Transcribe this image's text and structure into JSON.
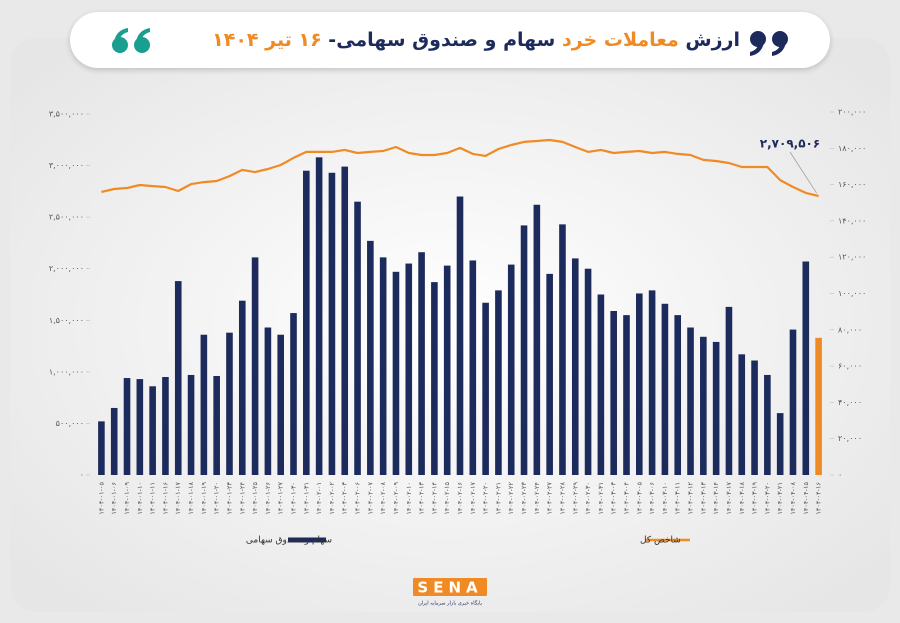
{
  "chart_data": {
    "type": "bar-line",
    "title_parts": [
      {
        "text": "ارزش",
        "color": "#1d2a5c"
      },
      {
        "text": " معاملات خرد",
        "color": "#f08a24"
      },
      {
        "text": " سهام و صندوق سهامی- ",
        "color": "#1d2a5c"
      },
      {
        "text": "۱۶ تیر ۱۴۰۴",
        "color": "#f08a24"
      }
    ],
    "categories": [
      "۱۴۰۴-۰۱-۰۵",
      "۱۴۰۴-۰۱-۰۶",
      "۱۴۰۴-۰۱-۰۹",
      "۱۴۰۴-۰۱-۱۰",
      "۱۴۰۴-۰۱-۱۱",
      "۱۴۰۴-۰۱-۱۶",
      "۱۴۰۴-۰۱-۱۷",
      "۱۴۰۴-۰۱-۱۸",
      "۱۴۰۴-۰۱-۱۹",
      "۱۴۰۴-۰۱-۲۰",
      "۱۴۰۴-۰۱-۲۳",
      "۱۴۰۴-۰۱-۲۴",
      "۱۴۰۴-۰۱-۲۵",
      "۱۴۰۴-۰۱-۲۶",
      "۱۴۰۴-۰۱-۲۷",
      "۱۴۰۴-۰۱-۳۰",
      "۱۴۰۴-۰۱-۳۱",
      "۱۴۰۴-۰۲-۰۱",
      "۱۴۰۴-۰۲-۰۲",
      "۱۴۰۴-۰۲-۰۳",
      "۱۴۰۴-۰۲-۰۶",
      "۱۴۰۴-۰۲-۰۷",
      "۱۴۰۴-۰۲-۰۸",
      "۱۴۰۴-۰۲-۰۹",
      "۱۴۰۴-۰۲-۱۰",
      "۱۴۰۴-۰۲-۱۳",
      "۱۴۰۴-۰۲-۱۴",
      "۱۴۰۴-۰۲-۱۵",
      "۱۴۰۴-۰۲-۱۶",
      "۱۴۰۴-۰۲-۱۷",
      "۱۴۰۴-۰۲-۲۰",
      "۱۴۰۴-۰۲-۲۱",
      "۱۴۰۴-۰۲-۲۲",
      "۱۴۰۴-۰۲-۲۳",
      "۱۴۰۴-۰۲-۲۴",
      "۱۴۰۴-۰۲-۲۷",
      "۱۴۰۴-۰۲-۲۸",
      "۱۴۰۴-۰۲-۲۹",
      "۱۴۰۴-۰۲-۳۰",
      "۱۴۰۴-۰۲-۳۱",
      "۱۴۰۴-۰۳-۰۳",
      "۱۴۰۴-۰۳-۰۴",
      "۱۴۰۴-۰۳-۰۵",
      "۱۴۰۴-۰۳-۰۶",
      "۱۴۰۴-۰۳-۱۰",
      "۱۴۰۴-۰۳-۱۱",
      "۱۴۰۴-۰۳-۱۲",
      "۱۴۰۴-۰۳-۱۳",
      "۱۴۰۴-۰۳-۱۴",
      "۱۴۰۴-۰۳-۱۷",
      "۱۴۰۴-۰۳-۱۸",
      "۱۴۰۴-۰۳-۱۹",
      "۱۴۰۴-۰۳-۲۰",
      "۱۴۰۴-۰۳-۲۱",
      "۱۴۰۴-۰۴-۰۸",
      "۱۴۰۴-۰۴-۱۵",
      "۱۴۰۴-۰۴-۱۶"
    ],
    "series": [
      {
        "name": "سهام و صندوق سهامی",
        "type": "bar",
        "color": "#1d2a5c",
        "last_color": "#f08a24",
        "values": [
          520000,
          650000,
          940000,
          930000,
          860000,
          950000,
          1880000,
          970000,
          1360000,
          960000,
          1380000,
          1690000,
          2110000,
          1430000,
          1360000,
          1570000,
          2950000,
          3080000,
          2930000,
          2990000,
          2650000,
          2270000,
          2110000,
          1970000,
          2050000,
          2160000,
          1870000,
          2030000,
          2700000,
          2080000,
          1670000,
          1790000,
          2040000,
          2420000,
          2620000,
          1950000,
          2430000,
          2100000,
          2000000,
          1750000,
          1590000,
          1550000,
          1760000,
          1790000,
          1660000,
          1550000,
          1430000,
          1340000,
          1290000,
          1630000,
          1170000,
          1110000,
          970000,
          600000,
          1410000,
          2070000,
          1330000
        ]
      },
      {
        "name": "شاخص کل",
        "type": "line",
        "axis": "y2",
        "color": "#f08a24",
        "values": [
          156000,
          157600,
          158100,
          159800,
          159200,
          158700,
          156500,
          160300,
          161400,
          162000,
          164700,
          168100,
          166900,
          168600,
          170800,
          174700,
          178000,
          178000,
          178000,
          179100,
          177400,
          178000,
          178500,
          180700,
          177400,
          176300,
          176300,
          177400,
          180200,
          176900,
          175800,
          179600,
          181800,
          183500,
          184000,
          184600,
          183500,
          180700,
          178000,
          179100,
          177400,
          178000,
          178500,
          177400,
          178000,
          176900,
          176300,
          173600,
          173000,
          171900,
          169700,
          169700,
          169700,
          162500,
          158700,
          155400,
          153700
        ]
      }
    ],
    "annotation": {
      "text": "۲,۷۰۹,۵۰۶",
      "color": "#1d2a5c"
    },
    "ylim": [
      0,
      3500000
    ],
    "yticks": [
      {
        "value": 0,
        "label": "۰"
      },
      {
        "value": 500000,
        "label": "۵۰۰,۰۰۰"
      },
      {
        "value": 1000000,
        "label": "۱,۰۰۰,۰۰۰"
      },
      {
        "value": 1500000,
        "label": "۱,۵۰۰,۰۰۰"
      },
      {
        "value": 2000000,
        "label": "۲,۰۰۰,۰۰۰"
      },
      {
        "value": 2500000,
        "label": "۲,۵۰۰,۰۰۰"
      },
      {
        "value": 3000000,
        "label": "۳,۰۰۰,۰۰۰"
      },
      {
        "value": 3500000,
        "label": "۳,۵۰۰,۰۰۰"
      }
    ],
    "y2lim": [
      0,
      200000
    ],
    "y2ticks": [
      {
        "value": 0,
        "label": "۰"
      },
      {
        "value": 20000,
        "label": "۲۰,۰۰۰"
      },
      {
        "value": 40000,
        "label": "۴۰,۰۰۰"
      },
      {
        "value": 60000,
        "label": "۶۰,۰۰۰"
      },
      {
        "value": 80000,
        "label": "۸۰,۰۰۰"
      },
      {
        "value": 100000,
        "label": "۱۰۰,۰۰۰"
      },
      {
        "value": 120000,
        "label": "۱۲۰,۰۰۰"
      },
      {
        "value": 140000,
        "label": "۱۴۰,۰۰۰"
      },
      {
        "value": 160000,
        "label": "۱۶۰,۰۰۰"
      },
      {
        "value": 180000,
        "label": "۱۸۰,۰۰۰"
      },
      {
        "value": 200000,
        "label": "۲۰۰,۰۰۰"
      }
    ],
    "grid": false,
    "legend": "bottom",
    "logo": {
      "text": "SENA",
      "subtitle": "پایگاه خبری بازار سرمایه ایران"
    }
  }
}
